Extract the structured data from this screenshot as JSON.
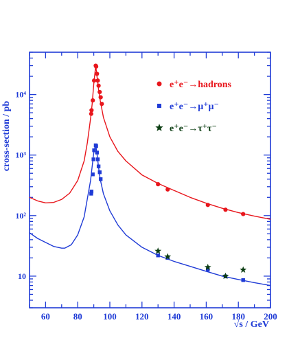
{
  "chart_data": {
    "type": "scatter",
    "xlabel": "√s / GeV",
    "ylabel": "cross-section / pb",
    "xlim": [
      50,
      200
    ],
    "ylim": [
      3,
      50000
    ],
    "y_scale": "log",
    "grid": false,
    "x_ticks": [
      60,
      80,
      100,
      120,
      140,
      160,
      180,
      200
    ],
    "y_ticks": [
      {
        "value": 10,
        "label": "10"
      },
      {
        "value": 100,
        "label": "10²"
      },
      {
        "value": 1000,
        "label": "10³"
      },
      {
        "value": 10000,
        "label": "10⁴"
      }
    ],
    "legend_position": "top-right",
    "colors": {
      "axis": "#1f3bd6",
      "hadrons": "#e8161c",
      "muons": "#1f3bd6",
      "taus": "#0b3d12"
    },
    "series": [
      {
        "name": "e⁺e⁻→hadrons",
        "marker": "circle",
        "points": [
          {
            "x": 88.4,
            "y": 4800
          },
          {
            "x": 88.6,
            "y": 5500
          },
          {
            "x": 89.4,
            "y": 8000
          },
          {
            "x": 90.2,
            "y": 17000
          },
          {
            "x": 91.2,
            "y": 30000
          },
          {
            "x": 91.5,
            "y": 29000
          },
          {
            "x": 92.0,
            "y": 22000
          },
          {
            "x": 92.5,
            "y": 17000
          },
          {
            "x": 93.0,
            "y": 14000
          },
          {
            "x": 93.7,
            "y": 11000
          },
          {
            "x": 94.3,
            "y": 9000
          },
          {
            "x": 95.0,
            "y": 7000
          },
          {
            "x": 130,
            "y": 330
          },
          {
            "x": 136,
            "y": 270
          },
          {
            "x": 161,
            "y": 150
          },
          {
            "x": 172,
            "y": 125
          },
          {
            "x": 183,
            "y": 106
          }
        ],
        "curve": [
          [
            50,
            200
          ],
          [
            55,
            175
          ],
          [
            60,
            162
          ],
          [
            65,
            165
          ],
          [
            70,
            185
          ],
          [
            75,
            235
          ],
          [
            80,
            380
          ],
          [
            84,
            800
          ],
          [
            86,
            1600
          ],
          [
            88,
            4000
          ],
          [
            89,
            7000
          ],
          [
            90,
            15000
          ],
          [
            91.2,
            30000
          ],
          [
            92,
            20000
          ],
          [
            93,
            12000
          ],
          [
            94,
            8000
          ],
          [
            96,
            4200
          ],
          [
            100,
            2000
          ],
          [
            105,
            1150
          ],
          [
            110,
            800
          ],
          [
            120,
            470
          ],
          [
            130,
            340
          ],
          [
            140,
            260
          ],
          [
            150,
            200
          ],
          [
            160,
            160
          ],
          [
            170,
            132
          ],
          [
            180,
            112
          ],
          [
            190,
            98
          ],
          [
            200,
            87
          ]
        ]
      },
      {
        "name": "e⁺e⁻→μ⁺μ⁻",
        "marker": "square",
        "points": [
          {
            "x": 88.4,
            "y": 230
          },
          {
            "x": 88.6,
            "y": 250
          },
          {
            "x": 89.4,
            "y": 480
          },
          {
            "x": 89.8,
            "y": 850
          },
          {
            "x": 90.2,
            "y": 1200
          },
          {
            "x": 91.2,
            "y": 1450
          },
          {
            "x": 91.5,
            "y": 1400
          },
          {
            "x": 92.0,
            "y": 1100
          },
          {
            "x": 92.5,
            "y": 850
          },
          {
            "x": 93.0,
            "y": 650
          },
          {
            "x": 93.7,
            "y": 520
          },
          {
            "x": 94.3,
            "y": 400
          },
          {
            "x": 130,
            "y": 22
          },
          {
            "x": 136,
            "y": 20
          },
          {
            "x": 161,
            "y": 12.8
          },
          {
            "x": 172,
            "y": 9.9
          },
          {
            "x": 183,
            "y": 8.6
          }
        ],
        "curve": [
          [
            50,
            52
          ],
          [
            55,
            42
          ],
          [
            60,
            36
          ],
          [
            65,
            31
          ],
          [
            70,
            29
          ],
          [
            72,
            29
          ],
          [
            76,
            33
          ],
          [
            80,
            48
          ],
          [
            84,
            95
          ],
          [
            86,
            190
          ],
          [
            88,
            380
          ],
          [
            89,
            650
          ],
          [
            90,
            1100
          ],
          [
            91.2,
            1480
          ],
          [
            92,
            1050
          ],
          [
            93,
            620
          ],
          [
            94,
            400
          ],
          [
            96,
            230
          ],
          [
            100,
            120
          ],
          [
            105,
            70
          ],
          [
            110,
            48
          ],
          [
            120,
            30
          ],
          [
            130,
            22
          ],
          [
            140,
            17.5
          ],
          [
            150,
            14.5
          ],
          [
            160,
            12
          ],
          [
            170,
            10
          ],
          [
            180,
            8.8
          ],
          [
            190,
            7.8
          ],
          [
            200,
            7
          ]
        ]
      },
      {
        "name": "e⁺e⁻→τ⁺τ⁻",
        "marker": "star",
        "points": [
          {
            "x": 130,
            "y": 26
          },
          {
            "x": 136,
            "y": 21
          },
          {
            "x": 161,
            "y": 14
          },
          {
            "x": 172,
            "y": 10
          },
          {
            "x": 183,
            "y": 12.7
          }
        ]
      }
    ]
  }
}
